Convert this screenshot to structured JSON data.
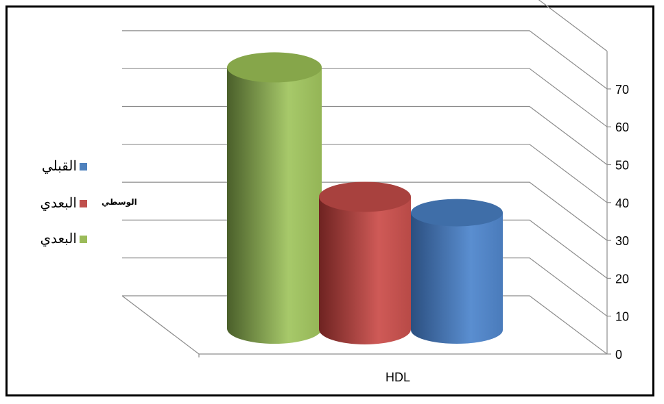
{
  "chart_data": {
    "type": "bar",
    "style": "3d-cylinder",
    "categories": [
      "HDL"
    ],
    "series": [
      {
        "name": "القبلي",
        "values": [
          31
        ],
        "color": "#4f81bd"
      },
      {
        "name": "البعدي",
        "values": [
          35
        ],
        "color": "#c0504d"
      },
      {
        "name": "البعدي",
        "values": [
          69
        ],
        "color": "#9bbb59"
      }
    ],
    "legend_note": "الوسطي",
    "y_ticks": [
      "0",
      "10",
      "20",
      "30",
      "40",
      "50",
      "60",
      "70"
    ],
    "ylim": [
      0,
      80
    ],
    "grid": true,
    "legend_position": "left",
    "border": true
  }
}
